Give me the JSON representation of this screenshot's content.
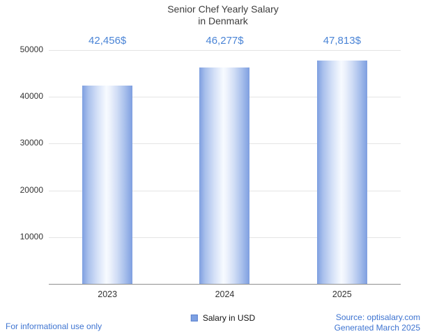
{
  "chart_data": {
    "type": "bar",
    "title": "Senior Chef Yearly Salary in Denmark",
    "title_lines": [
      "Senior Chef Yearly Salary",
      "in Denmark"
    ],
    "categories": [
      "2023",
      "2024",
      "2025"
    ],
    "values": [
      42456,
      46277,
      47813
    ],
    "value_labels": [
      "42,456$",
      "46,277$",
      "47,813$"
    ],
    "series_name": "Salary in USD",
    "xlabel": "",
    "ylabel": "",
    "ylim": [
      0,
      50000
    ],
    "ytick_step": 10000,
    "yticks": [
      "10000",
      "20000",
      "30000",
      "40000",
      "50000"
    ],
    "grid": true,
    "legend_position": "bottom"
  },
  "legend": {
    "label": "Salary in USD"
  },
  "footer": {
    "left": "For informational use only",
    "source": "Source: optisalary.com",
    "generated": "Generated March 2025"
  },
  "colors": {
    "bar_edge": "#7e9fe0",
    "bar_center": "#f7faff",
    "value_label_blue": "#4a84d6",
    "link_blue": "#3e74d1",
    "gridline": "#e4e4e4",
    "axis_line": "#8f8f8f",
    "title_text": "#3d3d3d"
  }
}
